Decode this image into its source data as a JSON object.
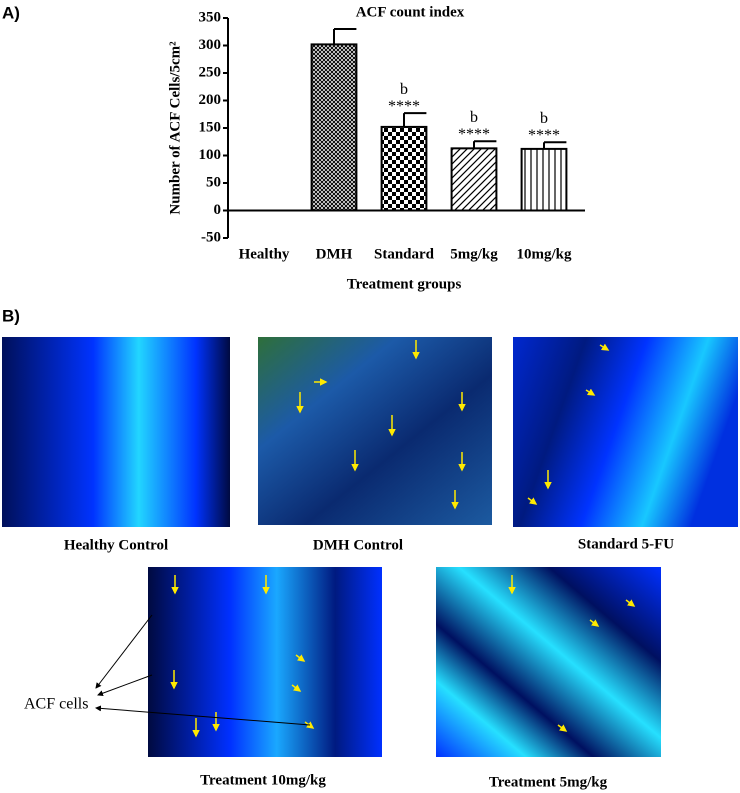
{
  "panel_labels": [
    "A)",
    "B)"
  ],
  "chart_data": {
    "type": "bar",
    "title": "ACF count index",
    "x_label": "Treatment groups",
    "y_label": "Number of ACF Cells/5cm²",
    "categories": [
      "Healthy",
      "DMH",
      "Standard",
      "5mg/kg",
      "10mg/kg"
    ],
    "values": [
      0,
      302,
      152,
      113,
      112
    ],
    "errors": [
      null,
      28,
      25,
      13,
      12
    ],
    "letters": [
      null,
      null,
      "b",
      "b",
      "b"
    ],
    "stars": [
      null,
      null,
      "****",
      "****",
      "****"
    ],
    "patterns": [
      null,
      "crosshatch",
      "checker",
      "diagonal",
      "vertical"
    ],
    "color": "#000000",
    "ylim": [
      -50,
      350
    ],
    "yticks": [
      -50,
      0,
      50,
      100,
      150,
      200,
      250,
      300,
      350
    ],
    "grid": false
  },
  "images": [
    {
      "caption": "Healthy Control"
    },
    {
      "caption": "DMH Control"
    },
    {
      "caption": "Standard 5-FU"
    },
    {
      "caption": "Treatment 10mg/kg"
    },
    {
      "caption": "Treatment 5mg/kg"
    }
  ],
  "annotation": "ACF cells"
}
